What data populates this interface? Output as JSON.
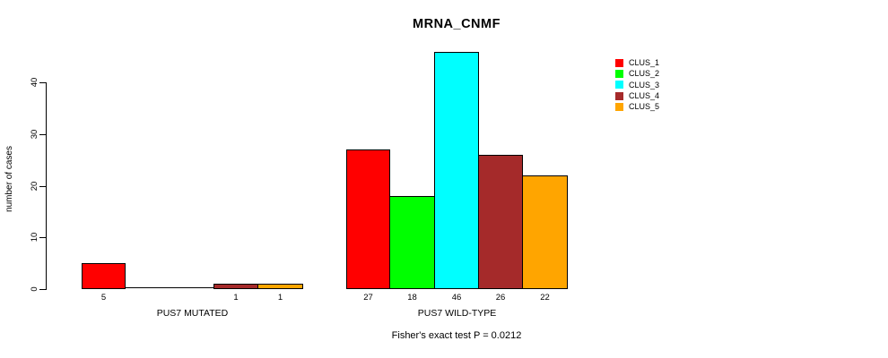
{
  "chart_data": {
    "type": "bar",
    "title": "MRNA_CNMF",
    "xlabel": "",
    "ylabel": "number of cases",
    "annotation": "Fisher's exact test P = 0.0212",
    "ylim": [
      0,
      46
    ],
    "yticks": [
      0,
      10,
      20,
      30,
      40
    ],
    "grid": false,
    "legend_position": "top-right",
    "bar_value_labels_shown": true,
    "categories": [
      "PUS7 MUTATED",
      "PUS7 WILD-TYPE"
    ],
    "series": [
      {
        "name": "CLUS_1",
        "color": "#FF0000",
        "values": [
          5,
          27
        ]
      },
      {
        "name": "CLUS_2",
        "color": "#00FF00",
        "values": [
          0,
          18
        ]
      },
      {
        "name": "CLUS_3",
        "color": "#00FFFF",
        "values": [
          0,
          46
        ]
      },
      {
        "name": "CLUS_4",
        "color": "#A52A2A",
        "values": [
          1,
          26
        ]
      },
      {
        "name": "CLUS_5",
        "color": "#FFA500",
        "values": [
          1,
          22
        ]
      }
    ],
    "axis_color": "#000000",
    "text_color": "#000000",
    "background_color": "#ffffff"
  }
}
